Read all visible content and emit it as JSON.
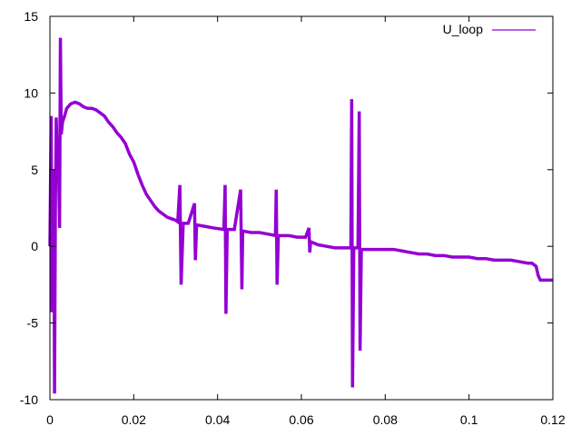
{
  "chart_data": {
    "type": "line",
    "title": "",
    "xlabel": "",
    "ylabel": "",
    "xlim": [
      0,
      0.12
    ],
    "ylim": [
      -10,
      15
    ],
    "x_ticks": [
      0,
      0.02,
      0.04,
      0.06,
      0.08,
      0.1,
      0.12
    ],
    "x_tick_labels": [
      "0",
      "0.02",
      "0.04",
      "0.06",
      "0.08",
      "0.1",
      "0.12"
    ],
    "y_ticks": [
      -10,
      -5,
      0,
      5,
      10,
      15
    ],
    "y_tick_labels": [
      "-10",
      "-5",
      "0",
      "5",
      "10",
      "15"
    ],
    "grid": false,
    "legend_position": "top-right",
    "series": [
      {
        "name": "U_loop",
        "color": "#9400d3",
        "points": [
          [
            0,
            0
          ],
          [
            0.0003,
            8.5
          ],
          [
            0.0005,
            -4.3
          ],
          [
            0.0008,
            0.6
          ],
          [
            0.0009,
            5.0
          ],
          [
            0.0011,
            -9.6
          ],
          [
            0.0013,
            2.3
          ],
          [
            0.0015,
            8.4
          ],
          [
            0.0018,
            5.2
          ],
          [
            0.002,
            6.4
          ],
          [
            0.0023,
            1.2
          ],
          [
            0.0025,
            13.6
          ],
          [
            0.0027,
            7.3
          ],
          [
            0.003,
            8.1
          ],
          [
            0.0035,
            8.5
          ],
          [
            0.004,
            9.0
          ],
          [
            0.005,
            9.3
          ],
          [
            0.006,
            9.4
          ],
          [
            0.007,
            9.3
          ],
          [
            0.008,
            9.1
          ],
          [
            0.009,
            9.0
          ],
          [
            0.01,
            9.0
          ],
          [
            0.011,
            8.9
          ],
          [
            0.012,
            8.7
          ],
          [
            0.013,
            8.5
          ],
          [
            0.014,
            8.1
          ],
          [
            0.015,
            7.8
          ],
          [
            0.016,
            7.4
          ],
          [
            0.017,
            7.1
          ],
          [
            0.018,
            6.7
          ],
          [
            0.019,
            6.0
          ],
          [
            0.02,
            5.5
          ],
          [
            0.021,
            4.7
          ],
          [
            0.022,
            4.0
          ],
          [
            0.023,
            3.4
          ],
          [
            0.024,
            3.0
          ],
          [
            0.025,
            2.6
          ],
          [
            0.026,
            2.3
          ],
          [
            0.027,
            2.1
          ],
          [
            0.028,
            1.9
          ],
          [
            0.029,
            1.8
          ],
          [
            0.03,
            1.7
          ],
          [
            0.0305,
            1.6
          ],
          [
            0.031,
            4.0
          ],
          [
            0.0313,
            -2.5
          ],
          [
            0.0318,
            1.5
          ],
          [
            0.033,
            1.5
          ],
          [
            0.0345,
            2.8
          ],
          [
            0.0347,
            -0.9
          ],
          [
            0.035,
            1.4
          ],
          [
            0.037,
            1.3
          ],
          [
            0.039,
            1.2
          ],
          [
            0.0415,
            1.1
          ],
          [
            0.0418,
            4.0
          ],
          [
            0.042,
            -4.4
          ],
          [
            0.0423,
            1.1
          ],
          [
            0.044,
            1.1
          ],
          [
            0.0455,
            3.7
          ],
          [
            0.0458,
            -2.8
          ],
          [
            0.046,
            1.0
          ],
          [
            0.048,
            0.9
          ],
          [
            0.05,
            0.9
          ],
          [
            0.052,
            0.8
          ],
          [
            0.0538,
            0.7
          ],
          [
            0.054,
            3.7
          ],
          [
            0.0542,
            -2.5
          ],
          [
            0.0545,
            0.7
          ],
          [
            0.057,
            0.7
          ],
          [
            0.059,
            0.6
          ],
          [
            0.061,
            0.6
          ],
          [
            0.0618,
            1.2
          ],
          [
            0.062,
            -0.4
          ],
          [
            0.0622,
            0.3
          ],
          [
            0.064,
            0.1
          ],
          [
            0.066,
            0.0
          ],
          [
            0.068,
            -0.1
          ],
          [
            0.07,
            -0.1
          ],
          [
            0.0718,
            -0.1
          ],
          [
            0.072,
            9.6
          ],
          [
            0.0722,
            -9.2
          ],
          [
            0.0725,
            -0.1
          ],
          [
            0.0735,
            -0.1
          ],
          [
            0.0738,
            8.8
          ],
          [
            0.074,
            -6.8
          ],
          [
            0.0743,
            -0.2
          ],
          [
            0.076,
            -0.2
          ],
          [
            0.078,
            -0.2
          ],
          [
            0.08,
            -0.2
          ],
          [
            0.082,
            -0.2
          ],
          [
            0.084,
            -0.3
          ],
          [
            0.086,
            -0.4
          ],
          [
            0.088,
            -0.5
          ],
          [
            0.09,
            -0.5
          ],
          [
            0.092,
            -0.6
          ],
          [
            0.094,
            -0.6
          ],
          [
            0.096,
            -0.7
          ],
          [
            0.098,
            -0.7
          ],
          [
            0.1,
            -0.7
          ],
          [
            0.102,
            -0.8
          ],
          [
            0.104,
            -0.8
          ],
          [
            0.106,
            -0.9
          ],
          [
            0.108,
            -0.9
          ],
          [
            0.11,
            -0.9
          ],
          [
            0.112,
            -1.0
          ],
          [
            0.114,
            -1.1
          ],
          [
            0.115,
            -1.1
          ],
          [
            0.116,
            -1.3
          ],
          [
            0.1165,
            -1.9
          ],
          [
            0.117,
            -2.2
          ],
          [
            0.118,
            -2.2
          ],
          [
            0.119,
            -2.2
          ],
          [
            0.12,
            -2.2
          ]
        ]
      }
    ]
  }
}
